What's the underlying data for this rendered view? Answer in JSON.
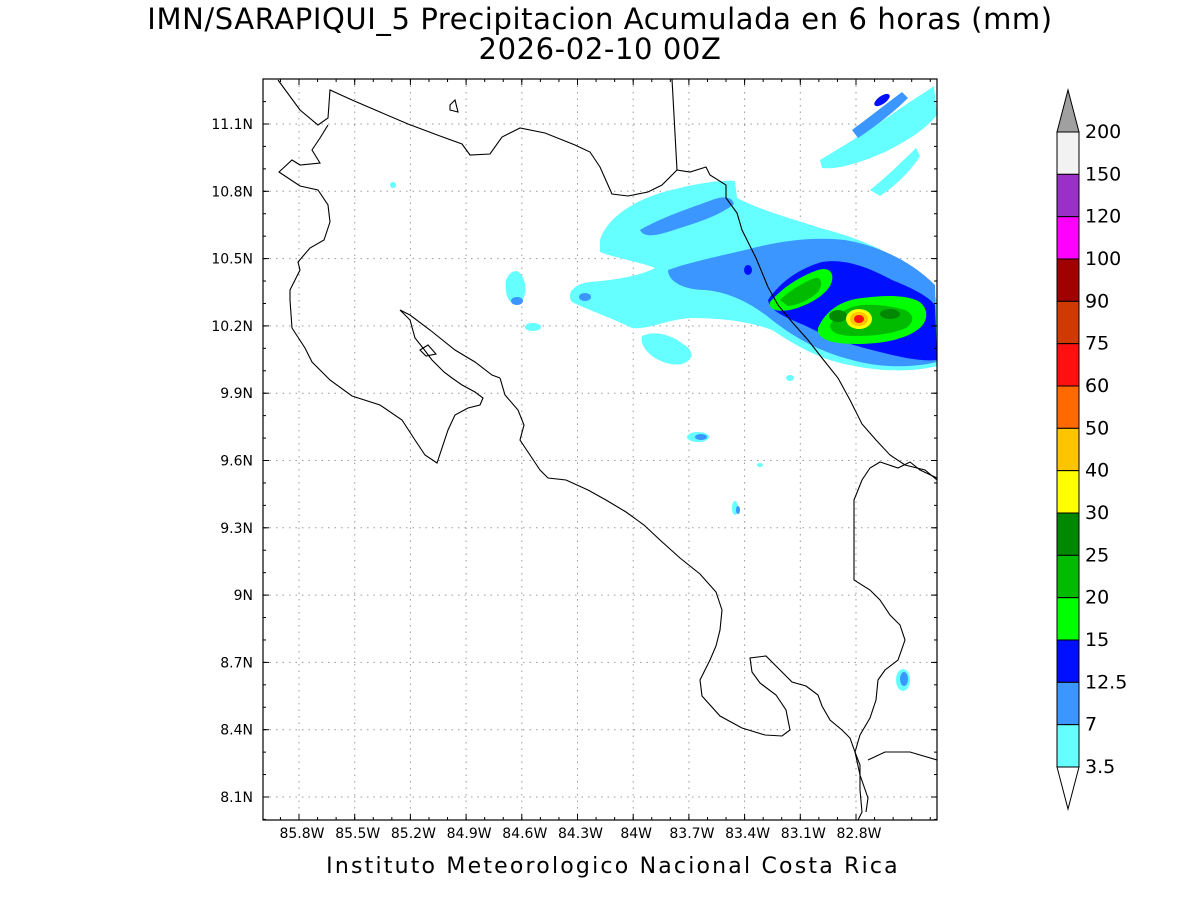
{
  "title": {
    "line1": "IMN/SARAPIQUI_5 Precipitacion Acumulada en 6 horas (mm)",
    "line2": "2026-02-10 00Z"
  },
  "credit": "Instituto Meteorologico Nacional Costa Rica",
  "map": {
    "latitude_labels": [
      "11.1N",
      "10.8N",
      "10.5N",
      "10.2N",
      "9.9N",
      "9.6N",
      "9.3N",
      "9N",
      "8.7N",
      "8.4N",
      "8.1N"
    ],
    "longitude_labels": [
      "85.8W",
      "85.5W",
      "85.2W",
      "84.9W",
      "84.6W",
      "84.3W",
      "84W",
      "83.7W",
      "83.4W",
      "83.1W",
      "82.8W"
    ],
    "grid": "dotted",
    "coastline_color": "#000000"
  },
  "legend": {
    "labels": [
      "200",
      "150",
      "120",
      "100",
      "90",
      "75",
      "60",
      "50",
      "40",
      "30",
      "25",
      "20",
      "15",
      "12.5",
      "7",
      "3.5"
    ],
    "colors": [
      "#f2f2f2",
      "#9b30c8",
      "#ff00ff",
      "#a00000",
      "#d03a00",
      "#ff1010",
      "#ff6a00",
      "#ffc400",
      "#ffff00",
      "#008800",
      "#00bb00",
      "#00ff00",
      "#0010ff",
      "#3c96ff",
      "#66ffff"
    ],
    "top_arrow_color": "#a0a0a0",
    "bottom_arrow_color": "#ffffff"
  }
}
